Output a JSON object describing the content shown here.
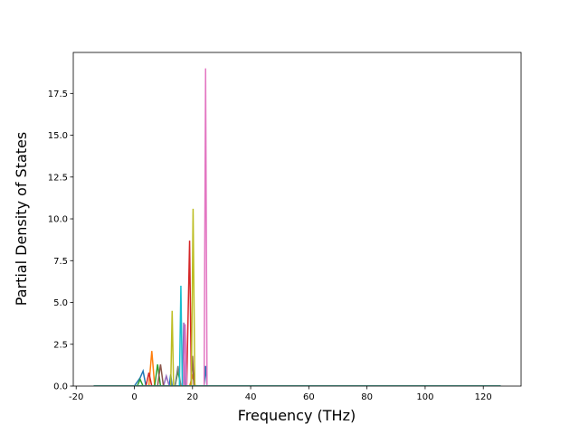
{
  "chart_data": {
    "type": "line",
    "xlabel": "Frequency (THz)",
    "ylabel": "Partial Density of States",
    "xlim": [
      -21,
      133
    ],
    "ylim": [
      0,
      19.95
    ],
    "xticks": [
      -20,
      0,
      20,
      40,
      60,
      80,
      100,
      120
    ],
    "yticks": [
      {
        "value": 0,
        "label": "0.0"
      },
      {
        "value": 2.5,
        "label": "2.5"
      },
      {
        "value": 5,
        "label": "5.0"
      },
      {
        "value": 7.5,
        "label": "7.5"
      },
      {
        "value": 10,
        "label": "10.0"
      },
      {
        "value": 12.5,
        "label": "12.5"
      },
      {
        "value": 15,
        "label": "15.0"
      },
      {
        "value": 17.5,
        "label": "17.5"
      }
    ],
    "series": [
      {
        "color": "#1f77b4",
        "x": [
          -14,
          0,
          2,
          3,
          4,
          12,
          12.5,
          13,
          24,
          24.5,
          25,
          126
        ],
        "values": [
          0,
          0,
          0.5,
          0.9,
          0,
          0,
          0.7,
          0,
          0,
          1.2,
          0,
          0
        ]
      },
      {
        "color": "#ff7f0e",
        "x": [
          -14,
          5,
          6,
          7,
          19,
          20,
          21,
          126
        ],
        "values": [
          0,
          0,
          2.1,
          0,
          0,
          0.6,
          0,
          0
        ]
      },
      {
        "color": "#2ca02c",
        "x": [
          -14,
          1,
          2,
          3,
          7,
          8,
          9,
          14,
          15,
          16,
          126
        ],
        "values": [
          0,
          0,
          0.4,
          0,
          0,
          1.3,
          0,
          0,
          0.9,
          0,
          0
        ]
      },
      {
        "color": "#d62728",
        "x": [
          -14,
          4,
          5,
          6,
          18,
          19,
          19.6,
          126
        ],
        "values": [
          0,
          0,
          0.8,
          0,
          0,
          8.7,
          0,
          0
        ]
      },
      {
        "color": "#9467bd",
        "x": [
          -14,
          10,
          11,
          12,
          16.5,
          17,
          17.5,
          126
        ],
        "values": [
          0,
          0,
          0.6,
          0,
          0,
          3.8,
          0,
          0
        ]
      },
      {
        "color": "#8c564b",
        "x": [
          -14,
          8,
          9,
          10,
          19.5,
          20,
          20.5,
          126
        ],
        "values": [
          0,
          0,
          1.3,
          0,
          0,
          1.8,
          0,
          0
        ]
      },
      {
        "color": "#e377c2",
        "x": [
          -14,
          17,
          17.5,
          18,
          24,
          24.5,
          25,
          126
        ],
        "values": [
          0,
          0,
          3.7,
          0,
          0,
          19,
          0,
          0
        ]
      },
      {
        "color": "#7f7f7f",
        "x": [
          -14,
          14,
          15,
          16,
          126
        ],
        "values": [
          0,
          0,
          1.2,
          0,
          0
        ]
      },
      {
        "color": "#bcbd22",
        "x": [
          -14,
          12.5,
          13,
          13.5,
          19.6,
          20.2,
          20.8,
          126
        ],
        "values": [
          0,
          0,
          4.5,
          0,
          0,
          10.6,
          0,
          0
        ]
      },
      {
        "color": "#17becf",
        "x": [
          -14,
          15.5,
          16,
          16.5,
          126
        ],
        "values": [
          0,
          0,
          6,
          0,
          0
        ]
      }
    ]
  }
}
